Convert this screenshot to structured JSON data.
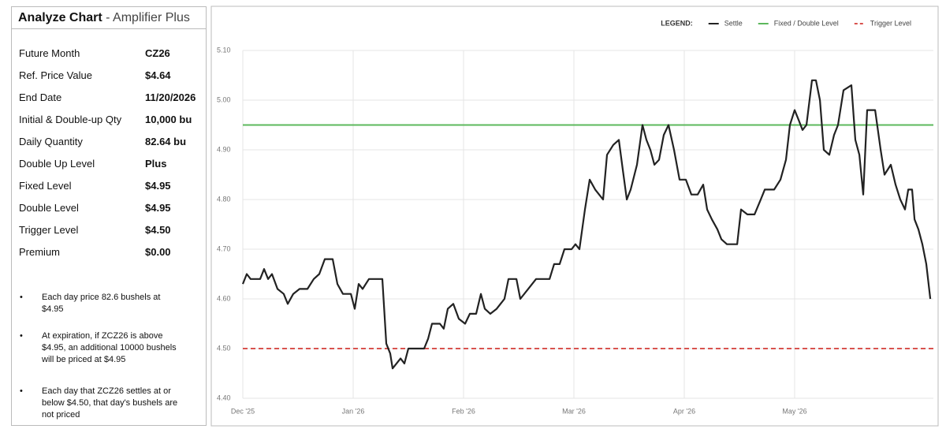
{
  "panel": {
    "title": "Analyze Chart",
    "subtitle": "- Amplifier Plus",
    "rows": [
      {
        "label": "Future Month",
        "value": "CZ26"
      },
      {
        "label": "Ref. Price Value",
        "value": "$4.64"
      },
      {
        "label": "End Date",
        "value": "11/20/2026"
      },
      {
        "label": "Initial & Double-up Qty",
        "value": "10,000 bu"
      },
      {
        "label": "Daily Quantity",
        "value": "82.64 bu"
      },
      {
        "label": "Double Up Level",
        "value": "Plus"
      },
      {
        "label": "Fixed Level",
        "value": "$4.95"
      },
      {
        "label": "Double Level",
        "value": "$4.95"
      },
      {
        "label": "Trigger Level",
        "value": "$4.50"
      },
      {
        "label": "Premium",
        "value": "$0.00"
      }
    ],
    "notes": [
      "Each day price 82.6 bushels at $4.95",
      "At expiration, if ZCZ26 is above $4.95, an additional 10000 bushels will be priced at $4.95",
      "Each day that ZCZ26 settles at or below $4.50, that day's bushels are not priced"
    ]
  },
  "chart_data": {
    "type": "line",
    "legend_title": "LEGEND:",
    "legend": "top-right",
    "grid": true,
    "series": [
      {
        "name": "Settle",
        "color": "#222222",
        "x": [
          0,
          0.036,
          0.071,
          0.157,
          0.193,
          0.229,
          0.264,
          0.314,
          0.371,
          0.407,
          0.457,
          0.514,
          0.586,
          0.643,
          0.693,
          0.743,
          0.814,
          0.857,
          0.907,
          0.979,
          1.014,
          1.05,
          1.086,
          1.143,
          1.264,
          1.3,
          1.336,
          1.357,
          1.393,
          1.429,
          1.464,
          1.5,
          1.586,
          1.643,
          1.679,
          1.714,
          1.786,
          1.821,
          1.857,
          1.907,
          1.957,
          2.014,
          2.057,
          2.114,
          2.157,
          2.193,
          2.243,
          2.3,
          2.371,
          2.407,
          2.479,
          2.514,
          2.586,
          2.657,
          2.779,
          2.821,
          2.871,
          2.914,
          2.979,
          3.014,
          3.05,
          3.1,
          3.143,
          3.193,
          3.264,
          3.3,
          3.357,
          3.407,
          3.443,
          3.479,
          3.514,
          3.571,
          3.621,
          3.657,
          3.693,
          3.729,
          3.771,
          3.814,
          3.857,
          3.907,
          3.957,
          4.014,
          4.064,
          4.121,
          4.171,
          4.207,
          4.25,
          4.3,
          4.336,
          4.386,
          4.479,
          4.514,
          4.571,
          4.636,
          4.693,
          4.729,
          4.814,
          4.871,
          4.921,
          4.957,
          5,
          5.036,
          5.071,
          5.107,
          5.157,
          5.193,
          5.229,
          5.264,
          5.314,
          5.357,
          5.393,
          5.443,
          5.514,
          5.55,
          5.586,
          5.621,
          5.657,
          5.729,
          5.779,
          5.814,
          5.871,
          5.914,
          5.957,
          6,
          6.029,
          6.064,
          6.086,
          6.121,
          6.157,
          6.193,
          6.229
        ],
        "values": [
          4.63,
          4.65,
          4.64,
          4.64,
          4.66,
          4.64,
          4.65,
          4.62,
          4.61,
          4.59,
          4.61,
          4.62,
          4.62,
          4.64,
          4.65,
          4.68,
          4.68,
          4.63,
          4.61,
          4.61,
          4.58,
          4.63,
          4.62,
          4.64,
          4.64,
          4.51,
          4.49,
          4.46,
          4.47,
          4.48,
          4.47,
          4.5,
          4.5,
          4.5,
          4.52,
          4.55,
          4.55,
          4.54,
          4.58,
          4.59,
          4.56,
          4.55,
          4.57,
          4.57,
          4.61,
          4.58,
          4.57,
          4.58,
          4.6,
          4.64,
          4.64,
          4.6,
          4.62,
          4.64,
          4.64,
          4.67,
          4.67,
          4.7,
          4.7,
          4.71,
          4.7,
          4.78,
          4.84,
          4.82,
          4.8,
          4.89,
          4.91,
          4.92,
          4.86,
          4.8,
          4.82,
          4.87,
          4.95,
          4.92,
          4.9,
          4.87,
          4.88,
          4.93,
          4.95,
          4.9,
          4.84,
          4.84,
          4.81,
          4.81,
          4.83,
          4.78,
          4.76,
          4.74,
          4.72,
          4.71,
          4.71,
          4.78,
          4.77,
          4.77,
          4.8,
          4.82,
          4.82,
          4.84,
          4.88,
          4.95,
          4.98,
          4.96,
          4.94,
          4.95,
          5.04,
          5.04,
          5,
          4.9,
          4.89,
          4.93,
          4.95,
          5.02,
          5.03,
          4.92,
          4.89,
          4.81,
          4.98,
          4.98,
          4.9,
          4.85,
          4.87,
          4.83,
          4.8,
          4.78,
          4.82,
          4.82,
          4.76,
          4.74,
          4.71,
          4.67,
          4.6
        ]
      }
    ],
    "levels": [
      {
        "name": "Fixed / Double Level",
        "value": 4.95,
        "color": "#5cb85c",
        "dashed": false
      },
      {
        "name": "Trigger Level",
        "value": 4.5,
        "color": "#d9534f",
        "dashed": true
      }
    ],
    "xlim": [
      0,
      6.257
    ],
    "xticks": [
      {
        "value": 0,
        "label": "Dec '25"
      },
      {
        "value": 1,
        "label": "Jan '26"
      },
      {
        "value": 2,
        "label": "Feb '26"
      },
      {
        "value": 3,
        "label": "Mar '26"
      },
      {
        "value": 4,
        "label": "Apr '26"
      },
      {
        "value": 5,
        "label": "May '26"
      }
    ],
    "ylim": [
      4.4,
      5.1
    ],
    "yticks": [
      {
        "value": 4.4,
        "label": "4.40"
      },
      {
        "value": 4.5,
        "label": "4.50"
      },
      {
        "value": 4.6,
        "label": "4.60"
      },
      {
        "value": 4.7,
        "label": "4.70"
      },
      {
        "value": 4.8,
        "label": "4.80"
      },
      {
        "value": 4.9,
        "label": "4.90"
      },
      {
        "value": 5.0,
        "label": "5.00"
      },
      {
        "value": 5.1,
        "label": "5.10"
      }
    ]
  }
}
